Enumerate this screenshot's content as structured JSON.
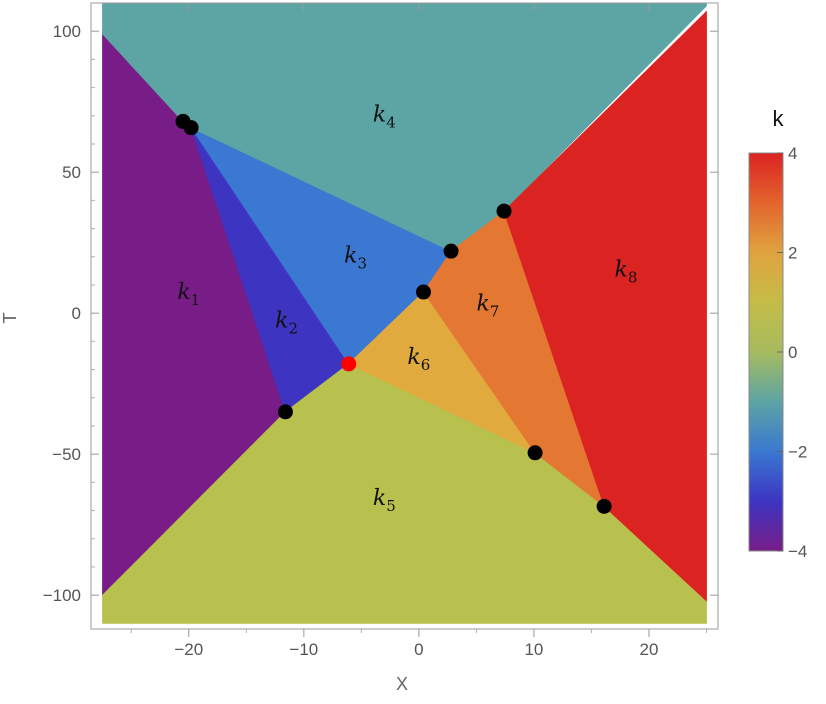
{
  "chart_data": {
    "type": "region_plot",
    "xlabel": "X",
    "ylabel": "T",
    "xlim": [
      -28.5,
      26
    ],
    "ylim": [
      -112,
      110
    ],
    "x_ticks": [
      {
        "value": -20,
        "label": "−20"
      },
      {
        "value": -10,
        "label": "−10"
      },
      {
        "value": 0,
        "label": "0"
      },
      {
        "value": 10,
        "label": "10"
      },
      {
        "value": 20,
        "label": "20"
      }
    ],
    "y_ticks": [
      {
        "value": 100,
        "label": "100"
      },
      {
        "value": 50,
        "label": "50"
      },
      {
        "value": 0,
        "label": "0"
      },
      {
        "value": -50,
        "label": "−50"
      },
      {
        "value": -100,
        "label": "−100"
      }
    ],
    "plot_domain": {
      "x": [
        -27.5,
        25
      ],
      "y": [
        -110,
        110
      ]
    },
    "regions": [
      {
        "name": "k1",
        "base": "k",
        "sub": "1",
        "color": "#781d87",
        "label_at": [
          -20,
          5
        ],
        "polygon": [
          [
            -27.5,
            99
          ],
          [
            -20.5,
            68
          ],
          [
            -19.8,
            65.8
          ],
          [
            -11.6,
            -35
          ],
          [
            -27.5,
            -100
          ]
        ]
      },
      {
        "name": "k2",
        "base": "k",
        "sub": "2",
        "color": "#3d34c2",
        "label_at": [
          -11.5,
          -5
        ],
        "polygon": [
          [
            -19.8,
            65.8
          ],
          [
            -6.1,
            -18
          ],
          [
            -11.6,
            -35
          ]
        ]
      },
      {
        "name": "k3",
        "base": "k",
        "sub": "3",
        "color": "#3a78d1",
        "label_at": [
          -5.5,
          18
        ],
        "polygon": [
          [
            -19.8,
            65.8
          ],
          [
            2.8,
            22
          ],
          [
            0.4,
            7.5
          ],
          [
            -6.1,
            -18
          ]
        ]
      },
      {
        "name": "k4",
        "base": "k",
        "sub": "4",
        "color": "#5da4a4",
        "label_at": [
          -3,
          68
        ],
        "polygon": [
          [
            -27.5,
            110
          ],
          [
            25,
            110
          ],
          [
            25,
            109
          ],
          [
            7.4,
            36.2
          ],
          [
            2.8,
            22
          ],
          [
            -19.8,
            65.8
          ],
          [
            -20.5,
            68
          ],
          [
            -27.5,
            99
          ]
        ]
      },
      {
        "name": "k5",
        "base": "k",
        "sub": "5",
        "color": "#b8c14d",
        "label_at": [
          -3,
          -68
        ],
        "polygon": [
          [
            -27.5,
            -100
          ],
          [
            -11.6,
            -35
          ],
          [
            -6.1,
            -18
          ],
          [
            10.1,
            -49.5
          ],
          [
            16.1,
            -68.5
          ],
          [
            25,
            -102
          ],
          [
            25,
            -110
          ],
          [
            -27.5,
            -110
          ]
        ]
      },
      {
        "name": "k6",
        "base": "k",
        "sub": "6",
        "color": "#e0aa3e",
        "label_at": [
          0,
          -18
        ],
        "polygon": [
          [
            -6.1,
            -18
          ],
          [
            0.4,
            7.5
          ],
          [
            10.1,
            -49.5
          ]
        ]
      },
      {
        "name": "k7",
        "base": "k",
        "sub": "7",
        "color": "#e47732",
        "label_at": [
          6,
          1
        ],
        "polygon": [
          [
            0.4,
            7.5
          ],
          [
            2.8,
            22
          ],
          [
            7.4,
            36.2
          ],
          [
            16.1,
            -68.5
          ],
          [
            10.1,
            -49.5
          ]
        ]
      },
      {
        "name": "k8",
        "base": "k",
        "sub": "8",
        "color": "#db2322",
        "label_at": [
          18,
          13
        ],
        "polygon": [
          [
            7.4,
            36.2
          ],
          [
            25,
            107
          ],
          [
            25,
            -102
          ],
          [
            16.1,
            -68.5
          ]
        ]
      }
    ],
    "points": [
      {
        "x": -20.5,
        "y": 68,
        "color": "#000000"
      },
      {
        "x": -19.8,
        "y": 65.8,
        "color": "#000000"
      },
      {
        "x": -11.6,
        "y": -35,
        "color": "#000000"
      },
      {
        "x": -6.1,
        "y": -18,
        "color": "#ff0000"
      },
      {
        "x": 0.4,
        "y": 7.5,
        "color": "#000000"
      },
      {
        "x": 2.8,
        "y": 22,
        "color": "#000000"
      },
      {
        "x": 7.4,
        "y": 36.2,
        "color": "#000000"
      },
      {
        "x": 10.1,
        "y": -49.5,
        "color": "#000000"
      },
      {
        "x": 16.1,
        "y": -68.5,
        "color": "#000000"
      }
    ],
    "legend": {
      "title": "k",
      "range": [
        -4,
        4
      ],
      "ticks": [
        {
          "value": 4,
          "label": "4"
        },
        {
          "value": 2,
          "label": "2"
        },
        {
          "value": 0,
          "label": "0"
        },
        {
          "value": -2,
          "label": "−2"
        },
        {
          "value": -4,
          "label": "−4"
        }
      ],
      "gradient": [
        {
          "value": 4,
          "color": "#db2322"
        },
        {
          "value": 3,
          "color": "#e3642d"
        },
        {
          "value": 2,
          "color": "#e0a33f"
        },
        {
          "value": 1,
          "color": "#c5bc48"
        },
        {
          "value": 0,
          "color": "#a6bb5f"
        },
        {
          "value": -1,
          "color": "#5da4a4"
        },
        {
          "value": -2,
          "color": "#3a78d1"
        },
        {
          "value": -3,
          "color": "#3d34c2"
        },
        {
          "value": -4,
          "color": "#781d87"
        }
      ]
    },
    "grid": false
  }
}
